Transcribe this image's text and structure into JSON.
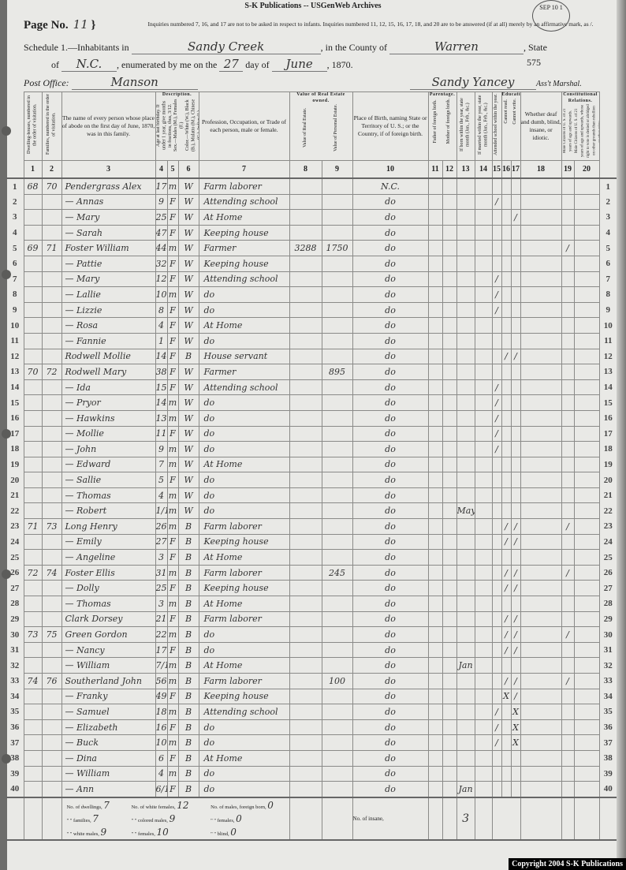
{
  "publisher": "S-K Publications -- USGenWeb Archives",
  "page_label": "Page No.",
  "page_no": "11",
  "note": "Inquiries numbered 7, 16, and 17 are not to be asked in respect to infants. Inquiries numbered 11, 12, 15, 16, 17, 18, and 20 are to be answered (if at all) merely by an affirmative mark, as /.",
  "stamp": "SEP 10 1",
  "schedule": {
    "label1": "Schedule 1.—Inhabitants in",
    "township": "Sandy Creek",
    "label2": ", in the County of",
    "county": "Warren",
    "label3": ", State",
    "label4": "of",
    "state": "N.C.",
    "label5": ", enumerated by me on the",
    "day": "27",
    "label6": "day of",
    "month": "June",
    "year": ", 1870.",
    "sheet": "575",
    "po_label": "Post Office:",
    "post_office": "Manson",
    "marshal": "Sandy Yancey",
    "marshal_label": "Ass't Marshal."
  },
  "columns": {
    "c1": "Dwelling-houses, numbered in the order of visitation.",
    "c2": "Families, numbered in the order of visitation.",
    "c3": "The name of every person whose place of abode on the first day of June, 1870, was in this family.",
    "description": "Description.",
    "c4": "Age at last birthday. If under 1 year, give months in fractions, thus, 3/12.",
    "c5": "Sex.—Males (M.), Females (F.)",
    "c6": "Color.—White (W.), Black (B.), Mulatto (M.), Chinese (C.), Indian (I.)",
    "c7": "Profession, Occupation, or Trade of each person, male or female.",
    "value": "Value of Real Estate owned.",
    "c8": "Value of Real Estate.",
    "c9": "Value of Personal Estate.",
    "c10": "Place of Birth, naming State or Territory of U. S.; or the Country, if of foreign birth.",
    "parentage": "Parentage.",
    "c11": "Father of foreign birth.",
    "c12": "Mother of foreign birth.",
    "c13": "If born within the year, state month (Jan., Feb., &c.)",
    "c14": "If married within the year, state month (Jan., Feb., &c.)",
    "c15": "Attended school within the year.",
    "education": "Education.",
    "c16": "Cannot read.",
    "c17": "Cannot write.",
    "c18": "Whether deaf and dumb, blind, insane, or idiotic.",
    "constitutional": "Constitutional Relations.",
    "c19": "Male Citizens of U. S. of 21 years of age and upwards.",
    "c20": "Male Citizens of U. S. of 21 years of age and upwards, whose right to vote is denied or abridged on other grounds than rebellion or other crime.",
    "numbers": [
      "1",
      "2",
      "3",
      "4",
      "5",
      "6",
      "7",
      "8",
      "9",
      "10",
      "11",
      "12",
      "13",
      "14",
      "15",
      "16",
      "17",
      "18",
      "19",
      "20"
    ]
  },
  "rows": [
    {
      "line": "1",
      "dwelling": "68",
      "family": "70",
      "name": "Pendergrass Alex",
      "age": "17",
      "sex": "m",
      "color": "W",
      "occupation": "Farm laborer",
      "birthplace": "N.C."
    },
    {
      "line": "2",
      "name": "— Annas",
      "age": "9",
      "sex": "F",
      "color": "W",
      "occupation": "Attending school",
      "birthplace": "do",
      "school": "/"
    },
    {
      "line": "3",
      "name": "— Mary",
      "age": "25",
      "sex": "F",
      "color": "W",
      "occupation": "At Home",
      "birthplace": "do",
      "cannot_write": "/"
    },
    {
      "line": "4",
      "name": "— Sarah",
      "age": "47",
      "sex": "F",
      "color": "W",
      "occupation": "Keeping house",
      "birthplace": "do"
    },
    {
      "line": "5",
      "dwelling": "69",
      "family": "71",
      "name": "Foster William",
      "age": "44",
      "sex": "m",
      "color": "W",
      "occupation": "Farmer",
      "real_estate": "3288",
      "personal_estate": "1750",
      "birthplace": "do",
      "citizen": "/"
    },
    {
      "line": "6",
      "name": "— Pattie",
      "age": "32",
      "sex": "F",
      "color": "W",
      "occupation": "Keeping house",
      "birthplace": "do"
    },
    {
      "line": "7",
      "name": "— Mary",
      "age": "12",
      "sex": "F",
      "color": "W",
      "occupation": "Attending school",
      "birthplace": "do",
      "school": "/"
    },
    {
      "line": "8",
      "name": "— Lallie",
      "age": "10",
      "sex": "m",
      "color": "W",
      "occupation": "do",
      "birthplace": "do",
      "school": "/"
    },
    {
      "line": "9",
      "name": "— Lizzie",
      "age": "8",
      "sex": "F",
      "color": "W",
      "occupation": "do",
      "birthplace": "do",
      "school": "/"
    },
    {
      "line": "10",
      "name": "— Rosa",
      "age": "4",
      "sex": "F",
      "color": "W",
      "occupation": "At Home",
      "birthplace": "do"
    },
    {
      "line": "11",
      "name": "— Fannie",
      "age": "1",
      "sex": "F",
      "color": "W",
      "occupation": "do",
      "birthplace": "do"
    },
    {
      "line": "12",
      "name": "Rodwell Mollie",
      "age": "14",
      "sex": "F",
      "color": "B",
      "occupation": "House servant",
      "birthplace": "do",
      "cannot_read": "/",
      "cannot_write": "/"
    },
    {
      "line": "13",
      "dwelling": "70",
      "family": "72",
      "name": "Rodwell Mary",
      "age": "38",
      "sex": "F",
      "color": "W",
      "occupation": "Farmer",
      "personal_estate": "895",
      "birthplace": "do"
    },
    {
      "line": "14",
      "name": "— Ida",
      "age": "15",
      "sex": "F",
      "color": "W",
      "occupation": "Attending school",
      "birthplace": "do",
      "school": "/"
    },
    {
      "line": "15",
      "name": "— Pryor",
      "age": "14",
      "sex": "m",
      "color": "W",
      "occupation": "do",
      "birthplace": "do",
      "school": "/"
    },
    {
      "line": "16",
      "name": "— Hawkins",
      "age": "13",
      "sex": "m",
      "color": "W",
      "occupation": "do",
      "birthplace": "do",
      "school": "/"
    },
    {
      "line": "17",
      "name": "— Mollie",
      "age": "11",
      "sex": "F",
      "color": "W",
      "occupation": "do",
      "birthplace": "do",
      "school": "/"
    },
    {
      "line": "18",
      "name": "— John",
      "age": "9",
      "sex": "m",
      "color": "W",
      "occupation": "do",
      "birthplace": "do",
      "school": "/"
    },
    {
      "line": "19",
      "name": "— Edward",
      "age": "7",
      "sex": "m",
      "color": "W",
      "occupation": "At Home",
      "birthplace": "do"
    },
    {
      "line": "20",
      "name": "— Sallie",
      "age": "5",
      "sex": "F",
      "color": "W",
      "occupation": "do",
      "birthplace": "do"
    },
    {
      "line": "21",
      "name": "— Thomas",
      "age": "4",
      "sex": "m",
      "color": "W",
      "occupation": "do",
      "birthplace": "do"
    },
    {
      "line": "22",
      "name": "— Robert",
      "age": "1/12",
      "sex": "m",
      "color": "W",
      "occupation": "do",
      "birthplace": "do",
      "month_born": "May"
    },
    {
      "line": "23",
      "dwelling": "71",
      "family": "73",
      "name": "Long Henry",
      "age": "26",
      "sex": "m",
      "color": "B",
      "occupation": "Farm laborer",
      "birthplace": "do",
      "cannot_read": "/",
      "cannot_write": "/",
      "citizen": "/"
    },
    {
      "line": "24",
      "name": "— Emily",
      "age": "27",
      "sex": "F",
      "color": "B",
      "occupation": "Keeping house",
      "birthplace": "do",
      "cannot_read": "/",
      "cannot_write": "/"
    },
    {
      "line": "25",
      "name": "— Angeline",
      "age": "3",
      "sex": "F",
      "color": "B",
      "occupation": "At Home",
      "birthplace": "do"
    },
    {
      "line": "26",
      "dwelling": "72",
      "family": "74",
      "name": "Foster Ellis",
      "age": "31",
      "sex": "m",
      "color": "B",
      "occupation": "Farm laborer",
      "personal_estate": "245",
      "birthplace": "do",
      "cannot_read": "/",
      "cannot_write": "/",
      "citizen": "/"
    },
    {
      "line": "27",
      "name": "— Dolly",
      "age": "25",
      "sex": "F",
      "color": "B",
      "occupation": "Keeping house",
      "birthplace": "do",
      "cannot_read": "/",
      "cannot_write": "/"
    },
    {
      "line": "28",
      "name": "— Thomas",
      "age": "3",
      "sex": "m",
      "color": "B",
      "occupation": "At Home",
      "birthplace": "do"
    },
    {
      "line": "29",
      "name": "Clark Dorsey",
      "age": "21",
      "sex": "F",
      "color": "B",
      "occupation": "Farm laborer",
      "birthplace": "do",
      "cannot_read": "/",
      "cannot_write": "/"
    },
    {
      "line": "30",
      "dwelling": "73",
      "family": "75",
      "name": "Green Gordon",
      "age": "22",
      "sex": "m",
      "color": "B",
      "occupation": "do",
      "birthplace": "do",
      "cannot_read": "/",
      "cannot_write": "/",
      "citizen": "/"
    },
    {
      "line": "31",
      "name": "— Nancy",
      "age": "17",
      "sex": "F",
      "color": "B",
      "occupation": "do",
      "birthplace": "do",
      "cannot_read": "/",
      "cannot_write": "/"
    },
    {
      "line": "32",
      "name": "— William",
      "age": "7/12",
      "sex": "m",
      "color": "B",
      "occupation": "At Home",
      "birthplace": "do",
      "month_born": "Jan"
    },
    {
      "line": "33",
      "dwelling": "74",
      "family": "76",
      "name": "Southerland John",
      "age": "56",
      "sex": "m",
      "color": "B",
      "occupation": "Farm laborer",
      "personal_estate": "100",
      "birthplace": "do",
      "cannot_read": "/",
      "cannot_write": "/",
      "citizen": "/"
    },
    {
      "line": "34",
      "name": "— Franky",
      "age": "49",
      "sex": "F",
      "color": "B",
      "occupation": "Keeping house",
      "birthplace": "do",
      "cannot_read": "X",
      "cannot_write": "/"
    },
    {
      "line": "35",
      "name": "— Samuel",
      "age": "18",
      "sex": "m",
      "color": "B",
      "occupation": "Attending school",
      "birthplace": "do",
      "school": "/",
      "cannot_write": "X"
    },
    {
      "line": "36",
      "name": "— Elizabeth",
      "age": "16",
      "sex": "F",
      "color": "B",
      "occupation": "do",
      "birthplace": "do",
      "school": "/",
      "cannot_write": "X"
    },
    {
      "line": "37",
      "name": "— Buck",
      "age": "10",
      "sex": "m",
      "color": "B",
      "occupation": "do",
      "birthplace": "do",
      "school": "/",
      "cannot_write": "X"
    },
    {
      "line": "38",
      "name": "— Dina",
      "age": "6",
      "sex": "F",
      "color": "B",
      "occupation": "At Home",
      "birthplace": "do"
    },
    {
      "line": "39",
      "name": "— William",
      "age": "4",
      "sex": "m",
      "color": "B",
      "occupation": "do",
      "birthplace": "do"
    },
    {
      "line": "40",
      "name": "— Ann",
      "age": "6/12",
      "sex": "F",
      "color": "B",
      "occupation": "do",
      "birthplace": "do",
      "month_born": "Jan"
    }
  ],
  "summary": {
    "dwellings_label": "No. of dwellings,",
    "dwellings": "7",
    "families_label": "\" \" families,",
    "families": "7",
    "white_males_label": "\" \" white males,",
    "white_males": "9",
    "white_females_label": "No. of white females,",
    "white_females": "12",
    "colored_males_label": "\" \" colored males,",
    "colored_males": "9",
    "colored_females_label": "\" \" females,",
    "colored_females": "10",
    "foreign_males_label": "No. of males, foreign born,",
    "foreign_males": "0",
    "foreign_females_label": "\" \" females,",
    "foreign_females": "0",
    "blind_label": "\" \" blind,",
    "blind": "0",
    "insane_label": "No. of insane,",
    "insane": "",
    "births_total": "3"
  },
  "copyright": "Copyright 2004 S-K Publications"
}
